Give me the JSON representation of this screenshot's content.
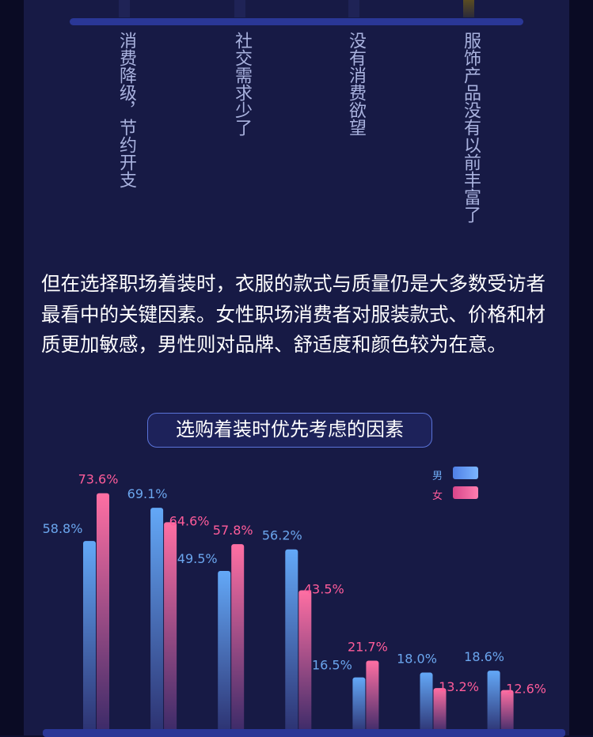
{
  "top_labels": [
    "消费降级，节约开支",
    "社交需求少了",
    "没有消费欲望",
    "服饰产品没有以前丰富了"
  ],
  "paragraph": "但在选择职场着装时，衣服的款式与质量仍是大多数受访者最看中的关键因素。女性职场消费者对服装款式、价格和材质更加敏感，男性则对品牌、舒适度和颜色较为在意。",
  "colors": {
    "male_top": "#63a8f7",
    "male_bottom": "#2c3170",
    "female_top": "#ff6fa3",
    "female_bottom": "#3a2a68",
    "male_label": "#6ba6ee",
    "female_label": "#ff5c9a"
  },
  "chart_data": {
    "type": "bar",
    "title": "选购着装时优先考虑的因素",
    "legend_position": "top-right",
    "ylim": [
      0,
      80
    ],
    "series": [
      {
        "name": "男",
        "values": [
          58.8,
          69.1,
          49.5,
          56.2,
          16.5,
          18.0,
          18.6
        ]
      },
      {
        "name": "女",
        "values": [
          73.6,
          64.6,
          57.8,
          43.5,
          21.7,
          13.2,
          12.6
        ]
      }
    ]
  }
}
